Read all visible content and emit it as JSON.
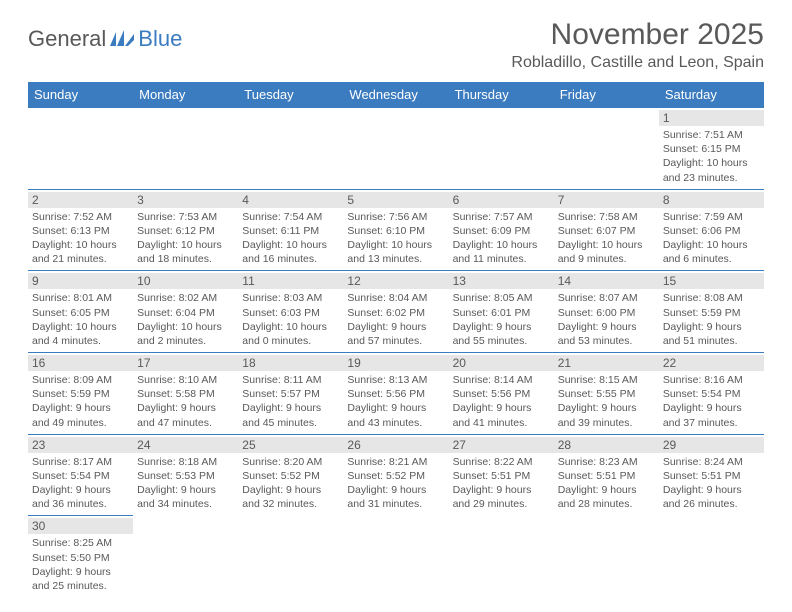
{
  "logo": {
    "word1": "General",
    "word2": "Blue"
  },
  "title": "November 2025",
  "location": "Robladillo, Castille and Leon, Spain",
  "colors": {
    "header_bg": "#3b7bbf",
    "header_text": "#ffffff",
    "text": "#595959",
    "daynum_bg": "#e6e6e6",
    "border": "#3b7bbf",
    "page_bg": "#ffffff"
  },
  "typography": {
    "month_title_fontsize": 30,
    "location_fontsize": 16,
    "dayheader_fontsize": 13,
    "cell_fontsize": 10.5
  },
  "day_headers": [
    "Sunday",
    "Monday",
    "Tuesday",
    "Wednesday",
    "Thursday",
    "Friday",
    "Saturday"
  ],
  "weeks": [
    [
      null,
      null,
      null,
      null,
      null,
      null,
      {
        "n": "1",
        "sunrise": "7:51 AM",
        "sunset": "6:15 PM",
        "daylight": "10 hours and 23 minutes."
      }
    ],
    [
      {
        "n": "2",
        "sunrise": "7:52 AM",
        "sunset": "6:13 PM",
        "daylight": "10 hours and 21 minutes."
      },
      {
        "n": "3",
        "sunrise": "7:53 AM",
        "sunset": "6:12 PM",
        "daylight": "10 hours and 18 minutes."
      },
      {
        "n": "4",
        "sunrise": "7:54 AM",
        "sunset": "6:11 PM",
        "daylight": "10 hours and 16 minutes."
      },
      {
        "n": "5",
        "sunrise": "7:56 AM",
        "sunset": "6:10 PM",
        "daylight": "10 hours and 13 minutes."
      },
      {
        "n": "6",
        "sunrise": "7:57 AM",
        "sunset": "6:09 PM",
        "daylight": "10 hours and 11 minutes."
      },
      {
        "n": "7",
        "sunrise": "7:58 AM",
        "sunset": "6:07 PM",
        "daylight": "10 hours and 9 minutes."
      },
      {
        "n": "8",
        "sunrise": "7:59 AM",
        "sunset": "6:06 PM",
        "daylight": "10 hours and 6 minutes."
      }
    ],
    [
      {
        "n": "9",
        "sunrise": "8:01 AM",
        "sunset": "6:05 PM",
        "daylight": "10 hours and 4 minutes."
      },
      {
        "n": "10",
        "sunrise": "8:02 AM",
        "sunset": "6:04 PM",
        "daylight": "10 hours and 2 minutes."
      },
      {
        "n": "11",
        "sunrise": "8:03 AM",
        "sunset": "6:03 PM",
        "daylight": "10 hours and 0 minutes."
      },
      {
        "n": "12",
        "sunrise": "8:04 AM",
        "sunset": "6:02 PM",
        "daylight": "9 hours and 57 minutes."
      },
      {
        "n": "13",
        "sunrise": "8:05 AM",
        "sunset": "6:01 PM",
        "daylight": "9 hours and 55 minutes."
      },
      {
        "n": "14",
        "sunrise": "8:07 AM",
        "sunset": "6:00 PM",
        "daylight": "9 hours and 53 minutes."
      },
      {
        "n": "15",
        "sunrise": "8:08 AM",
        "sunset": "5:59 PM",
        "daylight": "9 hours and 51 minutes."
      }
    ],
    [
      {
        "n": "16",
        "sunrise": "8:09 AM",
        "sunset": "5:59 PM",
        "daylight": "9 hours and 49 minutes."
      },
      {
        "n": "17",
        "sunrise": "8:10 AM",
        "sunset": "5:58 PM",
        "daylight": "9 hours and 47 minutes."
      },
      {
        "n": "18",
        "sunrise": "8:11 AM",
        "sunset": "5:57 PM",
        "daylight": "9 hours and 45 minutes."
      },
      {
        "n": "19",
        "sunrise": "8:13 AM",
        "sunset": "5:56 PM",
        "daylight": "9 hours and 43 minutes."
      },
      {
        "n": "20",
        "sunrise": "8:14 AM",
        "sunset": "5:56 PM",
        "daylight": "9 hours and 41 minutes."
      },
      {
        "n": "21",
        "sunrise": "8:15 AM",
        "sunset": "5:55 PM",
        "daylight": "9 hours and 39 minutes."
      },
      {
        "n": "22",
        "sunrise": "8:16 AM",
        "sunset": "5:54 PM",
        "daylight": "9 hours and 37 minutes."
      }
    ],
    [
      {
        "n": "23",
        "sunrise": "8:17 AM",
        "sunset": "5:54 PM",
        "daylight": "9 hours and 36 minutes."
      },
      {
        "n": "24",
        "sunrise": "8:18 AM",
        "sunset": "5:53 PM",
        "daylight": "9 hours and 34 minutes."
      },
      {
        "n": "25",
        "sunrise": "8:20 AM",
        "sunset": "5:52 PM",
        "daylight": "9 hours and 32 minutes."
      },
      {
        "n": "26",
        "sunrise": "8:21 AM",
        "sunset": "5:52 PM",
        "daylight": "9 hours and 31 minutes."
      },
      {
        "n": "27",
        "sunrise": "8:22 AM",
        "sunset": "5:51 PM",
        "daylight": "9 hours and 29 minutes."
      },
      {
        "n": "28",
        "sunrise": "8:23 AM",
        "sunset": "5:51 PM",
        "daylight": "9 hours and 28 minutes."
      },
      {
        "n": "29",
        "sunrise": "8:24 AM",
        "sunset": "5:51 PM",
        "daylight": "9 hours and 26 minutes."
      }
    ],
    [
      {
        "n": "30",
        "sunrise": "8:25 AM",
        "sunset": "5:50 PM",
        "daylight": "9 hours and 25 minutes."
      },
      null,
      null,
      null,
      null,
      null,
      null
    ]
  ],
  "labels": {
    "sunrise": "Sunrise:",
    "sunset": "Sunset:",
    "daylight": "Daylight:"
  }
}
